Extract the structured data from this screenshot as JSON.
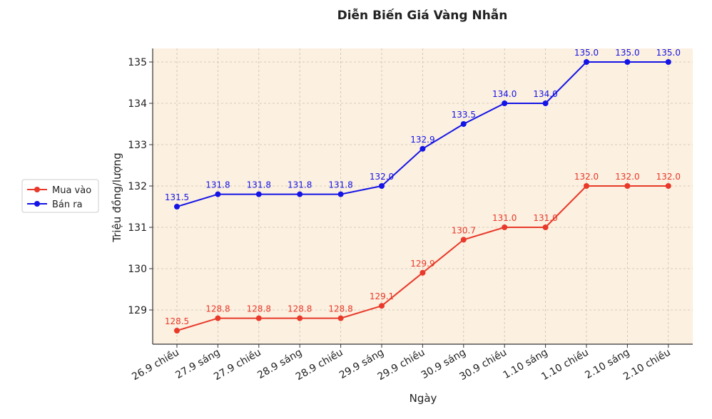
{
  "chart_data": {
    "type": "line",
    "title": "Diễn Biến Giá Vàng Nhẫn",
    "xlabel": "Ngày",
    "ylabel": "Triệu đồng/lượng",
    "categories": [
      "26.9 chiều",
      "27.9 sáng",
      "27.9 chiều",
      "28.9 sáng",
      "28.9 chiều",
      "29.9 sáng",
      "29.9 chiều",
      "30.9 sáng",
      "30.9 chiều",
      "1.10 sáng",
      "1.10 chiều",
      "2.10 sáng",
      "2.10 chiều"
    ],
    "ylim": [
      128.2,
      135.3
    ],
    "yticks": [
      129,
      130,
      131,
      132,
      133,
      134,
      135
    ],
    "grid": true,
    "legend_position": "left",
    "series": [
      {
        "name": "Mua vào",
        "color": "#e8392a",
        "values": [
          128.5,
          128.8,
          128.8,
          128.8,
          128.8,
          129.1,
          129.9,
          130.7,
          131.0,
          131.0,
          132.0,
          132.0,
          132.0
        ]
      },
      {
        "name": "Bán ra",
        "color": "#1414e6",
        "values": [
          131.5,
          131.8,
          131.8,
          131.8,
          131.8,
          132.0,
          132.9,
          133.5,
          134.0,
          134.0,
          135.0,
          135.0,
          135.0
        ]
      }
    ],
    "plot_background": "#fcf0e0"
  }
}
